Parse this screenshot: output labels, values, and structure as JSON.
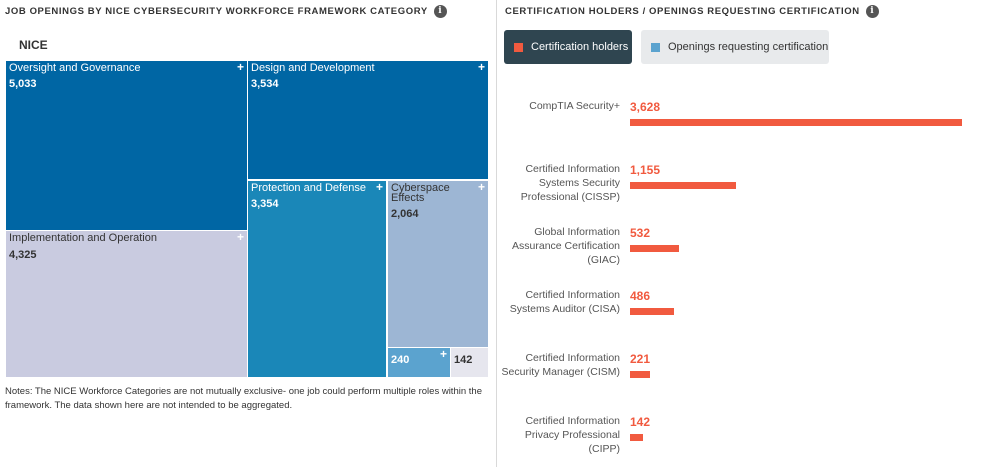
{
  "left_panel": {
    "title": "JOB OPENINGS BY NICE CYBERSECURITY WORKFORCE FRAMEWORK CATEGORY",
    "info_icon": "info-icon",
    "root_label": "NICE",
    "notes": "Notes: The NICE Workforce Categories are not mutually exclusive- one job could perform multiple roles within the framework. The data shown here are not intended to be aggregated."
  },
  "right_panel": {
    "title": "CERTIFICATION HOLDERS / OPENINGS REQUESTING CERTIFICATION",
    "info_icon": "info-icon",
    "legend": [
      {
        "label": "Certification holders",
        "color": "#f15a3f",
        "active": true
      },
      {
        "label": "Openings requesting certification",
        "color": "#5ba3cf",
        "active": false
      }
    ]
  },
  "chart_data": [
    {
      "type": "treemap",
      "root": "NICE",
      "categories": [
        "Oversight and Governance",
        "Design and Development",
        "Implementation and Operation",
        "Protection and Defense",
        "Cyberspace Effects",
        "",
        ""
      ],
      "values": [
        5033,
        3534,
        4325,
        3354,
        2064,
        240,
        142
      ],
      "colors": [
        "#0066a4",
        "#0066a4",
        "#c9cbe0",
        "#1a87b8",
        "#9db6d4",
        "#5ba3cf",
        "#e6e6ee"
      ]
    },
    {
      "type": "bar",
      "orientation": "horizontal",
      "series": [
        {
          "name": "Certification holders",
          "color": "#f15a3f"
        }
      ],
      "categories": [
        "CompTIA Security+",
        "Certified Information Systems Security Professional (CISSP)",
        "Global Information Assurance Certification (GIAC)",
        "Certified Information Systems Auditor (CISA)",
        "Certified Information Security Manager (CISM)",
        "Certified Information Privacy Professional (CIPP)"
      ],
      "values": [
        3628,
        1155,
        532,
        486,
        221,
        142
      ],
      "value_labels": [
        "3,628",
        "1,155",
        "532",
        "486",
        "221",
        "142"
      ],
      "xlim": [
        0,
        3628
      ]
    }
  ]
}
